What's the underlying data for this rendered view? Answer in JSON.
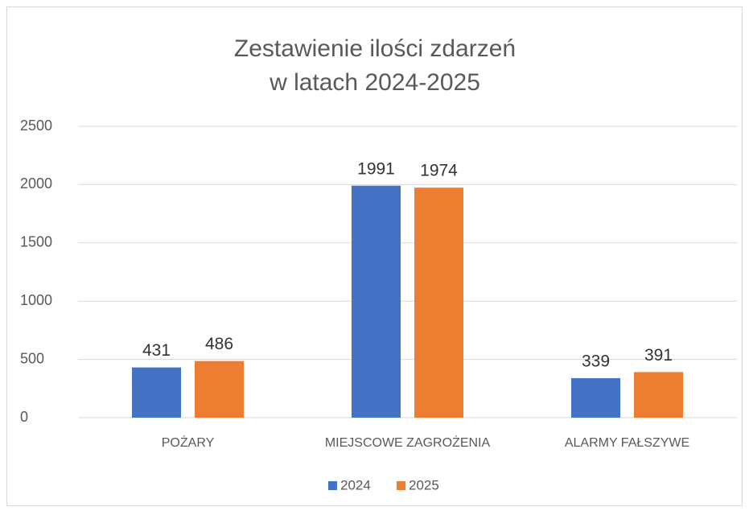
{
  "chart_data": {
    "type": "bar",
    "title": [
      "Zestawienie ilości zdarzeń",
      "w latach 2024-2025"
    ],
    "categories": [
      "POŻARY",
      "MIEJSCOWE ZAGROŻENIA",
      "ALARMY FAŁSZYWE"
    ],
    "series": [
      {
        "name": "2024",
        "color": "#4472c4",
        "values": [
          431,
          1991,
          339
        ]
      },
      {
        "name": "2025",
        "color": "#ed7d31",
        "values": [
          486,
          1974,
          391
        ]
      }
    ],
    "ylim": [
      0,
      2500
    ],
    "yticks": [
      0,
      500,
      1000,
      1500,
      2000,
      2500
    ],
    "grid": true,
    "legend": "bottom"
  }
}
